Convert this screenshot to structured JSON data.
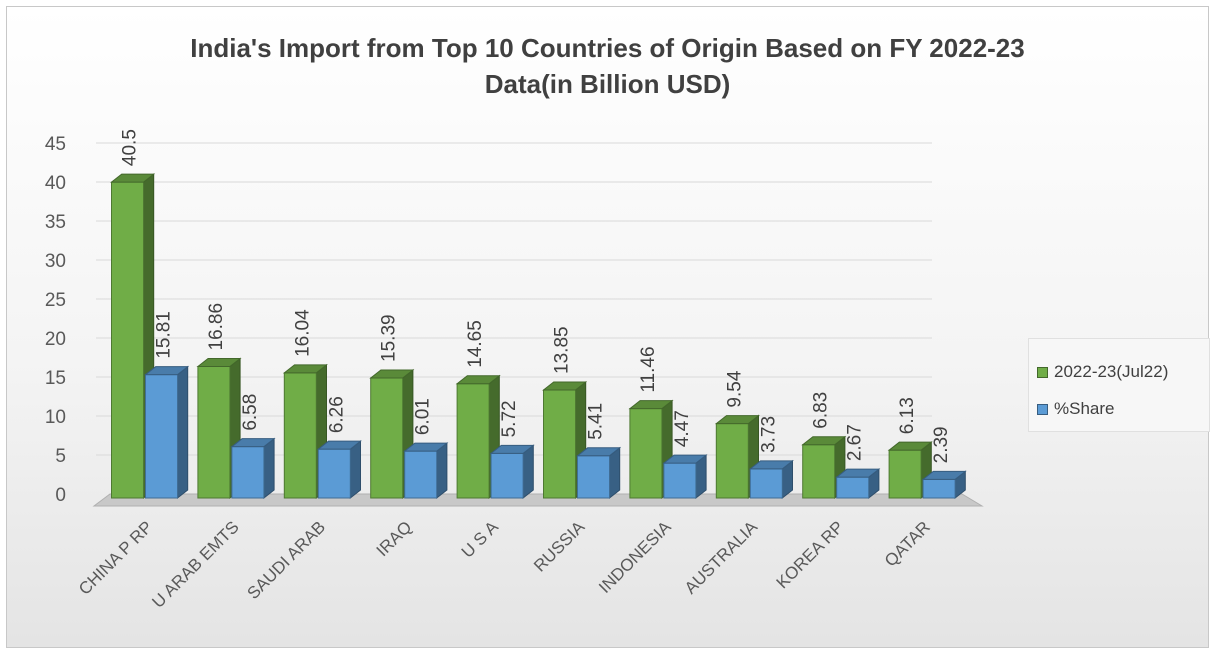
{
  "chart_data": {
    "type": "bar",
    "title": "India's Import from Top 10 Countries of Origin Based on FY 2022-23",
    "title_line2": "Data(in Billion USD)",
    "categories": [
      "CHINA P RP",
      "U ARAB EMTS",
      "SAUDI ARAB",
      "IRAQ",
      "U S A",
      "RUSSIA",
      "INDONESIA",
      "AUSTRALIA",
      "KOREA RP",
      "QATAR"
    ],
    "series": [
      {
        "name": "2022-23(Jul22)",
        "values": [
          40.5,
          16.86,
          16.04,
          15.39,
          14.65,
          13.85,
          11.46,
          9.54,
          6.83,
          6.13
        ],
        "color": "#70ad47"
      },
      {
        "name": "%Share",
        "values": [
          15.81,
          6.58,
          6.26,
          6.01,
          5.72,
          5.41,
          4.47,
          3.73,
          2.67,
          2.39
        ],
        "color": "#5b9bd5"
      }
    ],
    "ylim": [
      0,
      45
    ],
    "yticks": [
      "0",
      "5",
      "10",
      "15",
      "20",
      "25",
      "30",
      "35",
      "40",
      "45"
    ],
    "grid": true,
    "legend_position": "right",
    "bar_style": "3d"
  }
}
